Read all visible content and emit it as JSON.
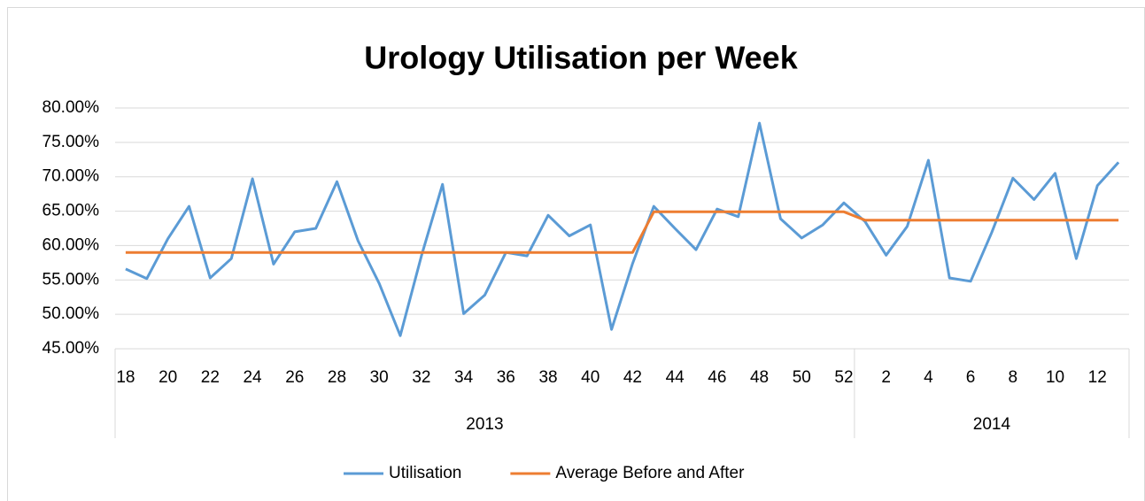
{
  "chart_data": {
    "type": "line",
    "title": "Urology Utilisation per Week",
    "categories": [
      "18",
      null,
      "20",
      null,
      "22",
      null,
      "24",
      null,
      "26",
      null,
      "28",
      null,
      "30",
      null,
      "32",
      null,
      "34",
      null,
      "36",
      null,
      "38",
      null,
      "40",
      null,
      "42",
      null,
      "44",
      null,
      "46",
      null,
      "48",
      null,
      "50",
      null,
      "52",
      null,
      "2",
      null,
      "4",
      null,
      "6",
      null,
      "8",
      null,
      "10",
      null,
      "12",
      null
    ],
    "x_groups": [
      {
        "label": "2013",
        "count": 35
      },
      {
        "label": "2014",
        "count": 13
      }
    ],
    "series": [
      {
        "name": "Utilisation",
        "color": "#5b9bd5",
        "values": [
          56.6,
          55.2,
          61.0,
          65.7,
          55.3,
          58.1,
          69.7,
          57.3,
          62.0,
          62.5,
          69.3,
          60.7,
          54.5,
          46.9,
          58.5,
          68.9,
          50.1,
          52.8,
          59.0,
          58.5,
          64.4,
          61.4,
          63.0,
          47.8,
          57.4,
          65.7,
          62.5,
          59.4,
          65.3,
          64.2,
          77.8,
          63.9,
          61.1,
          63.0,
          66.2,
          63.5,
          58.6,
          62.8,
          72.4,
          55.3,
          54.8,
          61.9,
          69.8,
          66.7,
          70.5,
          58.1,
          68.7,
          72.1
        ]
      },
      {
        "name": "Average Before and After",
        "color": "#ed7d31",
        "values": [
          59.0,
          59.0,
          59.0,
          59.0,
          59.0,
          59.0,
          59.0,
          59.0,
          59.0,
          59.0,
          59.0,
          59.0,
          59.0,
          59.0,
          59.0,
          59.0,
          59.0,
          59.0,
          59.0,
          59.0,
          59.0,
          59.0,
          59.0,
          59.0,
          59.0,
          64.9,
          64.9,
          64.9,
          64.9,
          64.9,
          64.9,
          64.9,
          64.9,
          64.9,
          64.9,
          63.7,
          63.7,
          63.7,
          63.7,
          63.7,
          63.7,
          63.7,
          63.7,
          63.7,
          63.7,
          63.7,
          63.7,
          63.7
        ]
      }
    ],
    "ylim": [
      45,
      80
    ],
    "yticks": [
      {
        "value": 45,
        "label": "45.00%"
      },
      {
        "value": 50,
        "label": "50.00%"
      },
      {
        "value": 55,
        "label": "55.00%"
      },
      {
        "value": 60,
        "label": "60.00%"
      },
      {
        "value": 65,
        "label": "65.00%"
      },
      {
        "value": 70,
        "label": "70.00%"
      },
      {
        "value": 75,
        "label": "75.00%"
      },
      {
        "value": 80,
        "label": "80.00%"
      }
    ],
    "grid": true,
    "legend": "bottom"
  }
}
